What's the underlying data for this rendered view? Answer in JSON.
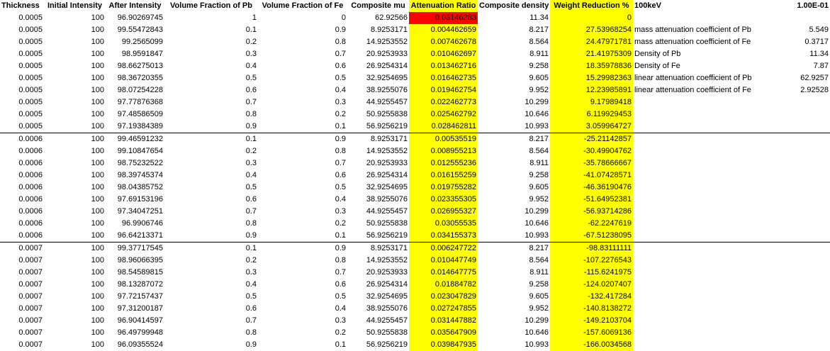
{
  "colors": {
    "highlight": "#ffff00",
    "alert": "#ff0000"
  },
  "headers": [
    "Thickness",
    "Initial Intensity",
    "After Intensity",
    "Volume Fraction of Pb",
    "Volume Fraction of Fe",
    "Composite mu",
    "Attenuation Ratio",
    "Composite density",
    "Weight Reduction %"
  ],
  "side": {
    "energy_label": "100keV",
    "energy_value": "1.00E-01",
    "rows": [
      {
        "label": "mass attenuation coefficient of Pb",
        "value": "5.549"
      },
      {
        "label": "mass attenuation coefficient of Fe",
        "value": "0.3717"
      },
      {
        "label": "Density of Pb",
        "value": "11.34"
      },
      {
        "label": "Density of Fe",
        "value": "7.87"
      },
      {
        "label": "linear attenuation coefficient of Pb",
        "value": "62.9257"
      },
      {
        "label": "linear attenuation coefficient of Fe",
        "value": "2.92528"
      }
    ]
  },
  "rows": [
    [
      "0.0005",
      "100",
      "96.90269745",
      "1",
      "0",
      "62.92566",
      "0.03146283",
      "11.34",
      "0"
    ],
    [
      "0.0005",
      "100",
      "99.55472843",
      "0.1",
      "0.9",
      "8.9253171",
      "0.004462659",
      "8.217",
      "27.53968254"
    ],
    [
      "0.0005",
      "100",
      "99.2565099",
      "0.2",
      "0.8",
      "14.9253552",
      "0.007462678",
      "8.564",
      "24.47971781"
    ],
    [
      "0.0005",
      "100",
      "98.9591847",
      "0.3",
      "0.7",
      "20.9253933",
      "0.010462697",
      "8.911",
      "21.41975309"
    ],
    [
      "0.0005",
      "100",
      "98.66275013",
      "0.4",
      "0.6",
      "26.9254314",
      "0.013462716",
      "9.258",
      "18.35978836"
    ],
    [
      "0.0005",
      "100",
      "98.36720355",
      "0.5",
      "0.5",
      "32.9254695",
      "0.016462735",
      "9.605",
      "15.29982363"
    ],
    [
      "0.0005",
      "100",
      "98.07254228",
      "0.6",
      "0.4",
      "38.9255076",
      "0.019462754",
      "9.952",
      "12.23985891"
    ],
    [
      "0.0005",
      "100",
      "97.77876368",
      "0.7",
      "0.3",
      "44.9255457",
      "0.022462773",
      "10.299",
      "9.17989418"
    ],
    [
      "0.0005",
      "100",
      "97.48586509",
      "0.8",
      "0.2",
      "50.9255838",
      "0.025462792",
      "10.646",
      "6.119929453"
    ],
    [
      "0.0005",
      "100",
      "97.19384389",
      "0.9",
      "0.1",
      "56.9256219",
      "0.028462811",
      "10.993",
      "3.059964727"
    ],
    [
      "0.0006",
      "100",
      "99.46591232",
      "0.1",
      "0.9",
      "8.9253171",
      "0.00535519",
      "8.217",
      "-25.21142857"
    ],
    [
      "0.0006",
      "100",
      "99.10847654",
      "0.2",
      "0.8",
      "14.9253552",
      "0.008955213",
      "8.564",
      "-30.49904762"
    ],
    [
      "0.0006",
      "100",
      "98.75232522",
      "0.3",
      "0.7",
      "20.9253933",
      "0.012555236",
      "8.911",
      "-35.78666667"
    ],
    [
      "0.0006",
      "100",
      "98.39745374",
      "0.4",
      "0.6",
      "26.9254314",
      "0.016155259",
      "9.258",
      "-41.07428571"
    ],
    [
      "0.0006",
      "100",
      "98.04385752",
      "0.5",
      "0.5",
      "32.9254695",
      "0.019755282",
      "9.605",
      "-46.36190476"
    ],
    [
      "0.0006",
      "100",
      "97.69153196",
      "0.6",
      "0.4",
      "38.9255076",
      "0.023355305",
      "9.952",
      "-51.64952381"
    ],
    [
      "0.0006",
      "100",
      "97.34047251",
      "0.7",
      "0.3",
      "44.9255457",
      "0.026955327",
      "10.299",
      "-56.93714286"
    ],
    [
      "0.0006",
      "100",
      "96.9906746",
      "0.8",
      "0.2",
      "50.9255838",
      "0.03055535",
      "10.646",
      "-62.2247619"
    ],
    [
      "0.0006",
      "100",
      "96.64213371",
      "0.9",
      "0.1",
      "56.9256219",
      "0.034155373",
      "10.993",
      "-67.51238095"
    ],
    [
      "0.0007",
      "100",
      "99.37717545",
      "0.1",
      "0.9",
      "8.9253171",
      "0.006247722",
      "8.217",
      "-98.83111111"
    ],
    [
      "0.0007",
      "100",
      "98.96066395",
      "0.2",
      "0.8",
      "14.9253552",
      "0.010447749",
      "8.564",
      "-107.2276543"
    ],
    [
      "0.0007",
      "100",
      "98.54589815",
      "0.3",
      "0.7",
      "20.9253933",
      "0.014647775",
      "8.911",
      "-115.6241975"
    ],
    [
      "0.0007",
      "100",
      "98.13287072",
      "0.4",
      "0.6",
      "26.9254314",
      "0.01884782",
      "9.258",
      "-124.0207407"
    ],
    [
      "0.0007",
      "100",
      "97.72157437",
      "0.5",
      "0.5",
      "32.9254695",
      "0.023047829",
      "9.605",
      "-132.417284"
    ],
    [
      "0.0007",
      "100",
      "97.31200187",
      "0.6",
      "0.4",
      "38.9255076",
      "0.027247855",
      "9.952",
      "-140.8138272"
    ],
    [
      "0.0007",
      "100",
      "96.90414597",
      "0.7",
      "0.3",
      "44.9255457",
      "0.031447882",
      "10.299",
      "-149.2103704"
    ],
    [
      "0.0007",
      "100",
      "96.49799948",
      "0.8",
      "0.2",
      "50.9255838",
      "0.035647909",
      "10.646",
      "-157.6069136"
    ],
    [
      "0.0007",
      "100",
      "96.09355524",
      "0.9",
      "0.1",
      "56.9256219",
      "0.039847935",
      "10.993",
      "-166.0034568"
    ]
  ]
}
